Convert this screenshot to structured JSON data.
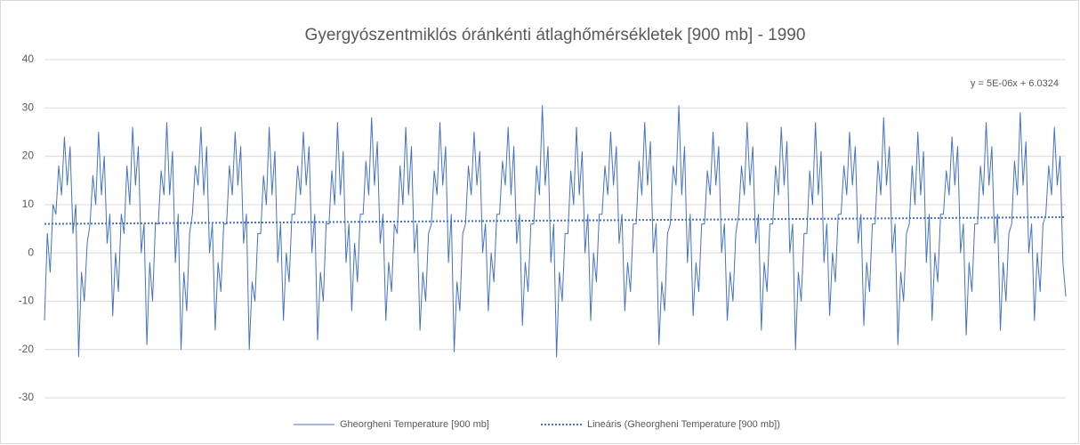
{
  "chart_data": {
    "type": "line",
    "title": "Gyergyószentmiklós óránkénti átlaghőmérsékletek [900 mb] - 1990",
    "annotation": "y = 5E-06x + 6.0324",
    "ylim": [
      -30,
      40
    ],
    "yticks": [
      -30,
      -20,
      -10,
      0,
      10,
      20,
      30,
      40
    ],
    "grid": true,
    "series": [
      {
        "name": "Gheorgheni Temperature [900 mb]",
        "color": "#4472c4",
        "dash": false,
        "values": [
          -14,
          4,
          -4,
          10,
          8,
          18,
          12,
          24,
          14,
          22,
          4,
          10,
          -21.5,
          -4,
          -10,
          2,
          6,
          16,
          10,
          25,
          12,
          20,
          2,
          8,
          -13,
          0,
          -8,
          8,
          4,
          18,
          10,
          26,
          14,
          22,
          0,
          6,
          -19,
          -2,
          -10,
          6,
          6,
          17,
          12,
          27,
          12,
          21,
          -2,
          8,
          -20,
          -4,
          -12,
          4,
          8,
          18,
          14,
          26,
          12,
          22,
          0,
          6,
          -16,
          -2,
          -8,
          6,
          6,
          18,
          12,
          25,
          14,
          22,
          2,
          8,
          -20,
          -6,
          -10,
          4,
          4,
          16,
          10,
          26,
          12,
          21,
          -2,
          6,
          -14,
          0,
          -6,
          8,
          8,
          18,
          12,
          25,
          14,
          22,
          0,
          8,
          -18,
          -4,
          -10,
          6,
          6,
          17,
          10,
          27,
          12,
          21,
          -2,
          6,
          -12,
          2,
          -6,
          8,
          8,
          19,
          12,
          28,
          14,
          23,
          2,
          8,
          -14,
          -2,
          -8,
          6,
          4,
          18,
          10,
          26,
          12,
          22,
          0,
          6,
          -16,
          -4,
          -10,
          4,
          6,
          17,
          12,
          27,
          14,
          22,
          -2,
          8,
          -20.5,
          -6,
          -12,
          4,
          6,
          18,
          12,
          25,
          14,
          21,
          0,
          6,
          -12,
          0,
          -6,
          8,
          8,
          19,
          14,
          26,
          12,
          22,
          2,
          8,
          -15,
          -2,
          -8,
          6,
          6,
          18,
          12,
          30.5,
          14,
          22,
          -2,
          6,
          -21.5,
          -4,
          -10,
          4,
          4,
          17,
          10,
          26,
          12,
          21,
          0,
          8,
          -14,
          0,
          -6,
          8,
          8,
          18,
          12,
          25,
          14,
          22,
          2,
          8,
          -12,
          -2,
          -8,
          6,
          6,
          19,
          12,
          27,
          14,
          23,
          0,
          6,
          -19,
          -6,
          -12,
          4,
          6,
          18,
          14,
          30.5,
          12,
          22,
          -2,
          8,
          -13,
          -2,
          -8,
          6,
          6,
          17,
          12,
          25,
          14,
          22,
          0,
          6,
          -14,
          -4,
          -10,
          4,
          8,
          18,
          12,
          27,
          14,
          22,
          2,
          8,
          -16,
          -2,
          -8,
          6,
          6,
          18,
          12,
          26,
          14,
          23,
          0,
          6,
          -20,
          -4,
          -10,
          4,
          4,
          17,
          10,
          27,
          12,
          21,
          -2,
          6,
          -13,
          0,
          -6,
          8,
          8,
          18,
          12,
          25,
          14,
          22,
          2,
          8,
          -15,
          -2,
          -8,
          6,
          6,
          19,
          12,
          28,
          14,
          22,
          0,
          6,
          -19,
          -4,
          -10,
          4,
          6,
          18,
          10,
          25,
          12,
          21,
          -2,
          8,
          -14,
          0,
          -6,
          8,
          8,
          17,
          12,
          24,
          14,
          22,
          0,
          6,
          -17,
          -2,
          -8,
          6,
          6,
          18,
          12,
          27,
          14,
          22,
          2,
          8,
          -16,
          -2,
          -10,
          4,
          6,
          19,
          12,
          29,
          14,
          23,
          0,
          6,
          -14,
          0,
          -8,
          6,
          8,
          18,
          12,
          26,
          14,
          20,
          -2,
          -9
        ]
      },
      {
        "name": "Lineáris (Gheorgheni Temperature [900 mb])",
        "color": "#4472c4",
        "dash": true,
        "values": [
          6.0,
          7.4
        ]
      }
    ]
  }
}
